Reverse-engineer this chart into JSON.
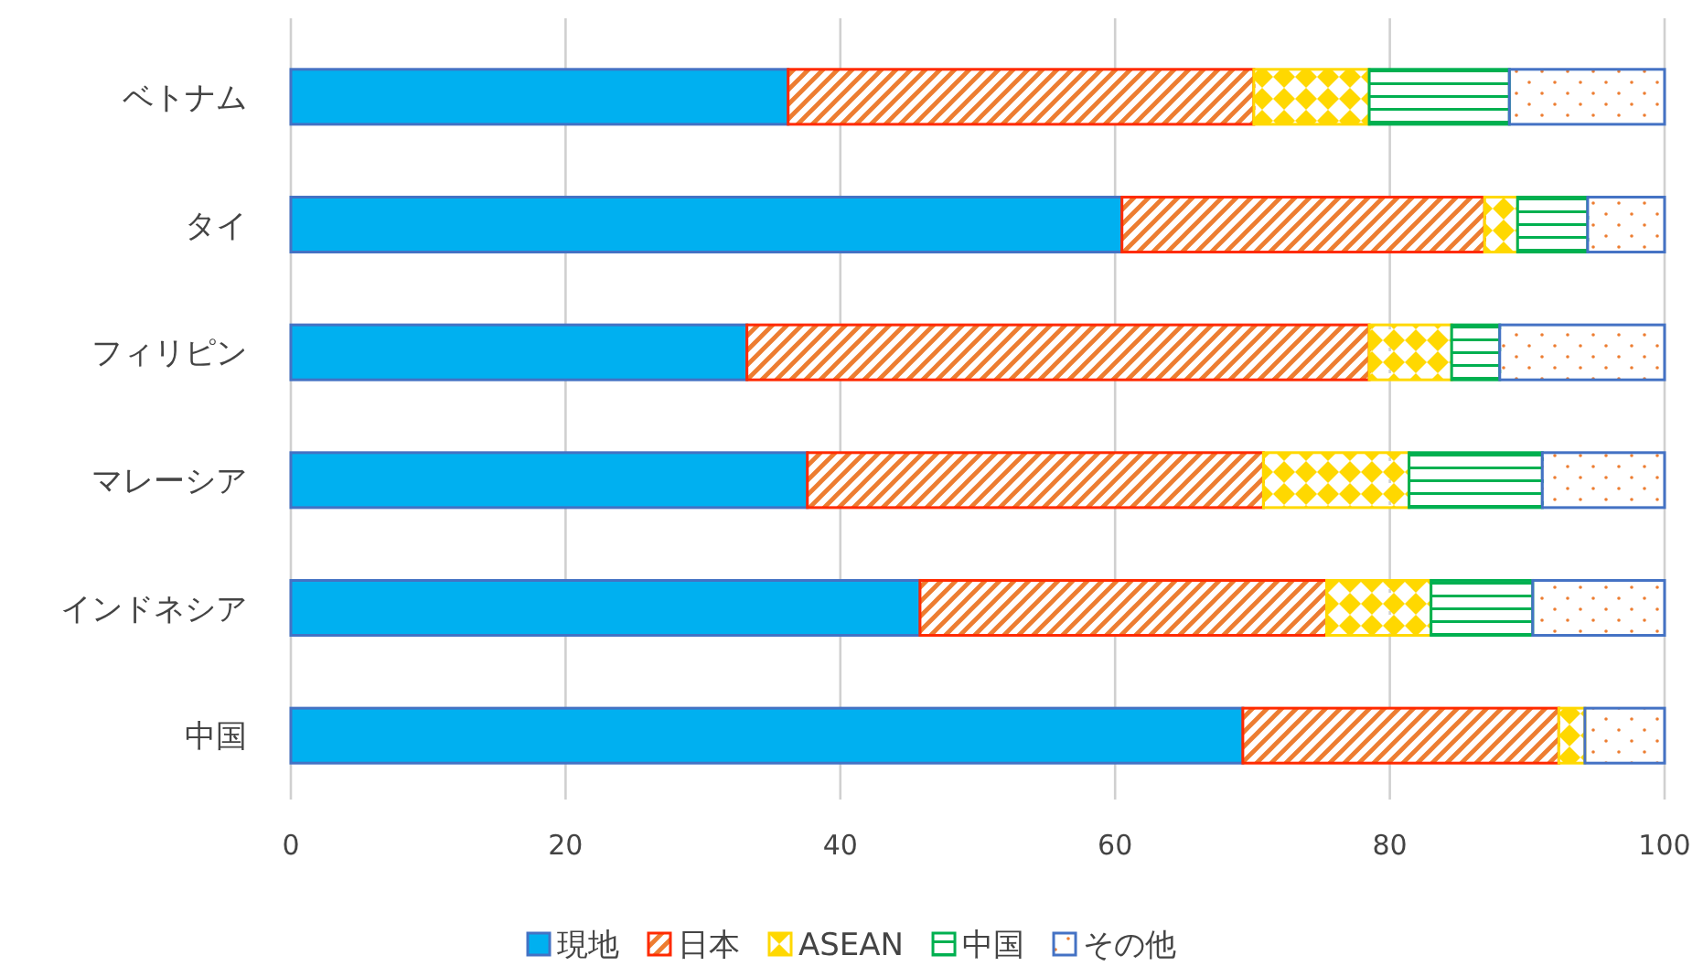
{
  "chart_data": {
    "type": "bar",
    "orientation": "horizontal",
    "stacked": true,
    "categories": [
      "ベトナム",
      "タイ",
      "フィリピン",
      "マレーシア",
      "インドネシア",
      "中国"
    ],
    "series": [
      {
        "name": "現地",
        "color": "#00b0f0",
        "values": [
          36.2,
          60.5,
          33.2,
          37.6,
          45.8,
          69.3
        ]
      },
      {
        "name": "日本",
        "color": "#ff2a00",
        "values": [
          33.9,
          26.4,
          45.3,
          33.2,
          29.6,
          23.0
        ]
      },
      {
        "name": "ASEAN",
        "color": "#ffd800",
        "values": [
          8.4,
          2.4,
          6.0,
          10.6,
          7.6,
          1.9
        ]
      },
      {
        "name": "中国",
        "color": "#00b050",
        "values": [
          10.2,
          5.1,
          3.5,
          9.7,
          7.4,
          0
        ]
      },
      {
        "name": "その他",
        "color": "#4472c4",
        "values": [
          11.3,
          5.6,
          12.0,
          8.9,
          9.6,
          5.8
        ]
      }
    ],
    "xlim": [
      0,
      100
    ],
    "xticks": [
      0,
      20,
      40,
      60,
      80,
      100
    ],
    "grid": "x",
    "legend": "bottom"
  }
}
